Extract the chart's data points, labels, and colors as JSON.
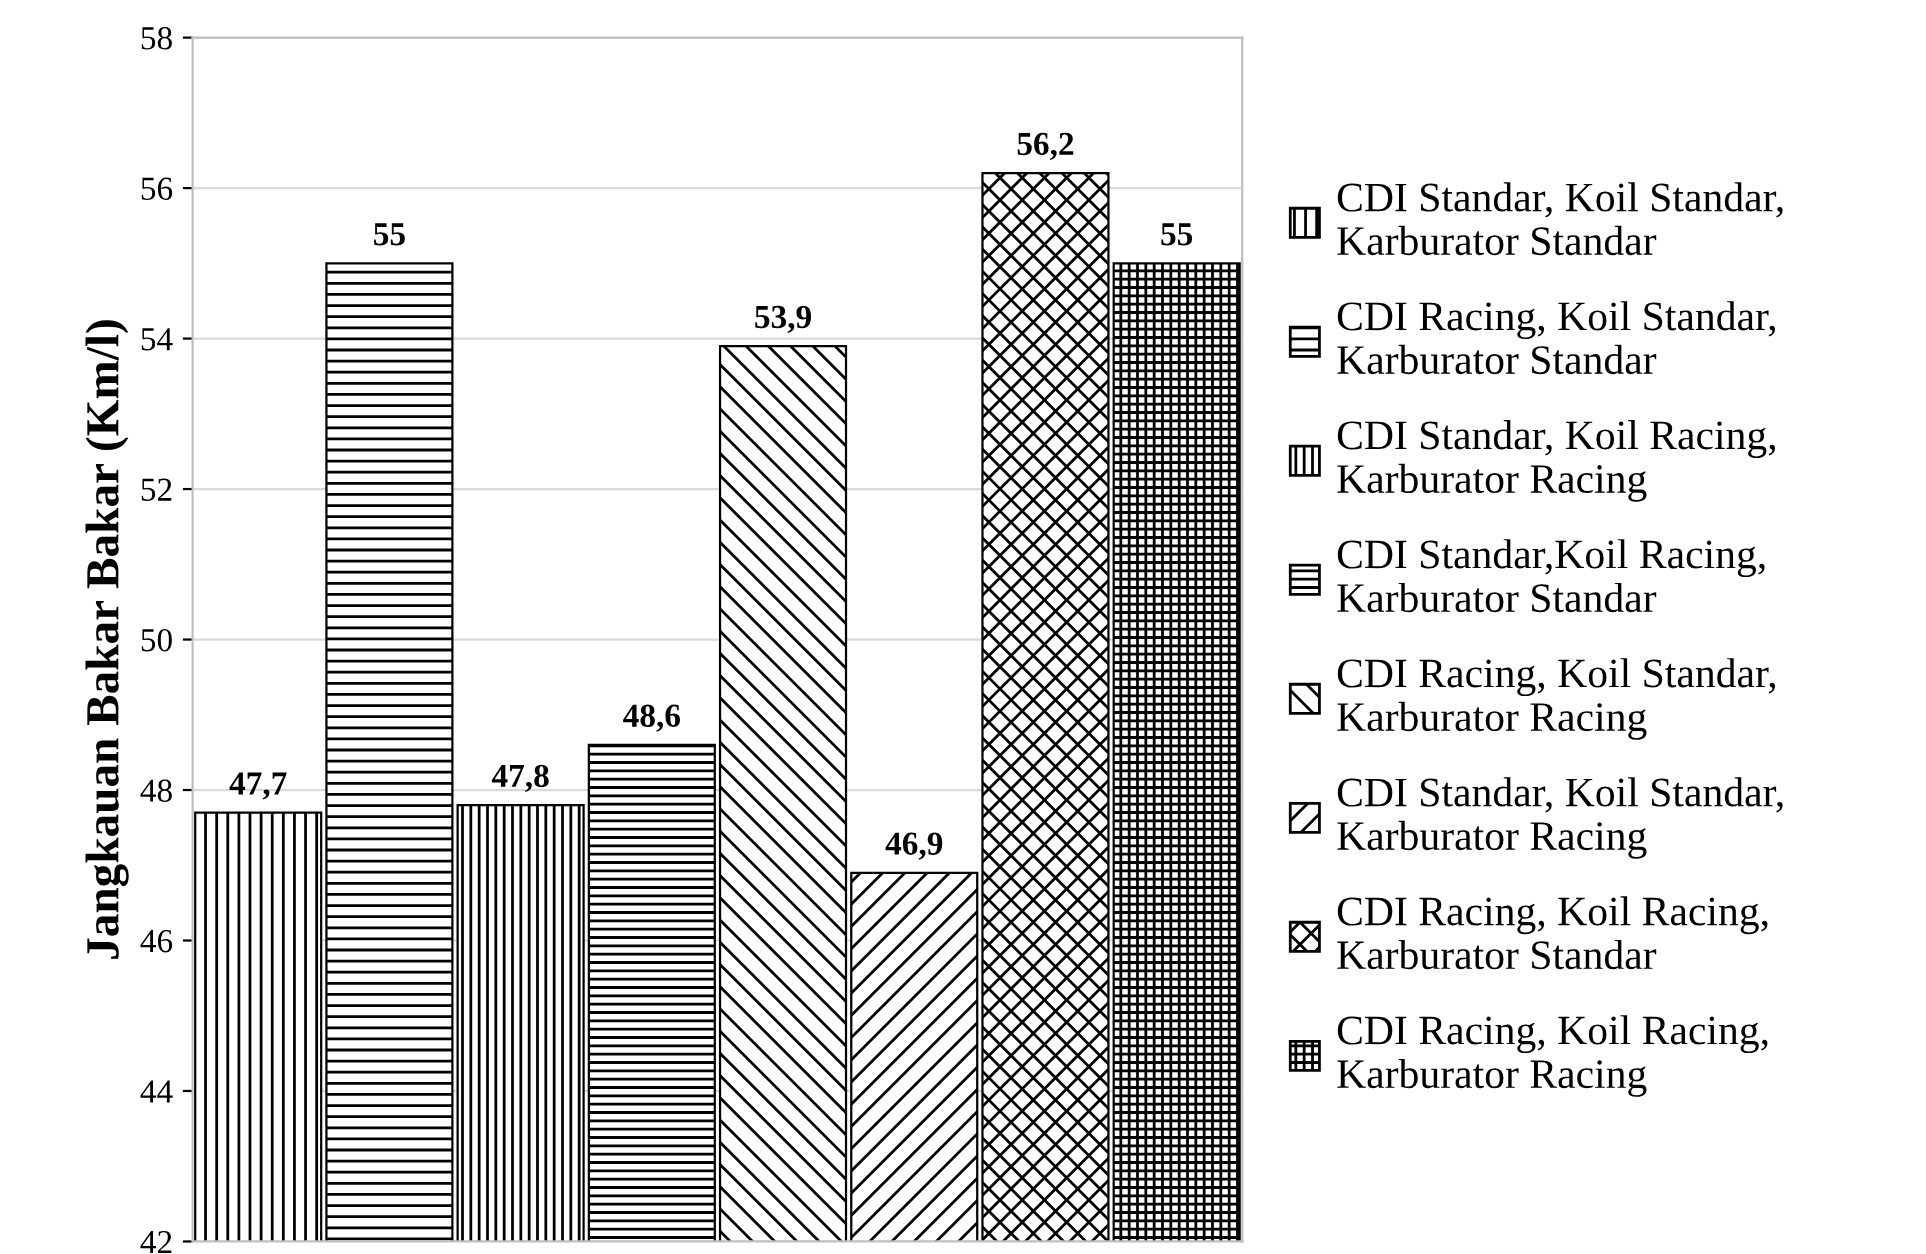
{
  "chart_data": {
    "type": "bar",
    "ylabel": "Jangkauan Bakar Bakar (Km/l)",
    "categories": [
      null
    ],
    "series": [
      {
        "name": "CDI Standar, Koil Standar,\nKarburator Standar",
        "color": "#000000",
        "values": [
          47.7
        ],
        "value_labels": [
          "47,7"
        ]
      },
      {
        "name": "CDI Racing, Koil Standar,\nKarburator Standar",
        "color": "#000000",
        "values": [
          55
        ],
        "value_labels": [
          "55"
        ]
      },
      {
        "name": "CDI Standar, Koil Racing,\nKarburator Racing",
        "color": "#000000",
        "values": [
          47.8
        ],
        "value_labels": [
          "47,8"
        ]
      },
      {
        "name": "CDI Standar,Koil Racing,\nKarburator Standar",
        "color": "#000000",
        "values": [
          48.6
        ],
        "value_labels": [
          "48,6"
        ]
      },
      {
        "name": "CDI Racing, Koil Standar,\nKarburator Racing",
        "color": "#000000",
        "values": [
          53.9
        ],
        "value_labels": [
          "53,9"
        ]
      },
      {
        "name": "CDI Standar, Koil Standar,\nKarburator Racing",
        "color": "#000000",
        "values": [
          46.9
        ],
        "value_labels": [
          "46,9"
        ]
      },
      {
        "name": "CDI Racing, Koil Racing,\nKarburator Standar",
        "color": "#000000",
        "values": [
          56.2
        ],
        "value_labels": [
          "56,2"
        ]
      },
      {
        "name": "CDI Racing, Koil Racing,\nKarburator Racing",
        "color": "#000000",
        "values": [
          55
        ],
        "value_labels": [
          "55"
        ]
      }
    ],
    "ylim": [
      42,
      58
    ],
    "yticks": [
      42,
      44,
      46,
      48,
      50,
      52,
      54,
      56,
      58
    ],
    "grid": "y",
    "legend": "right"
  }
}
